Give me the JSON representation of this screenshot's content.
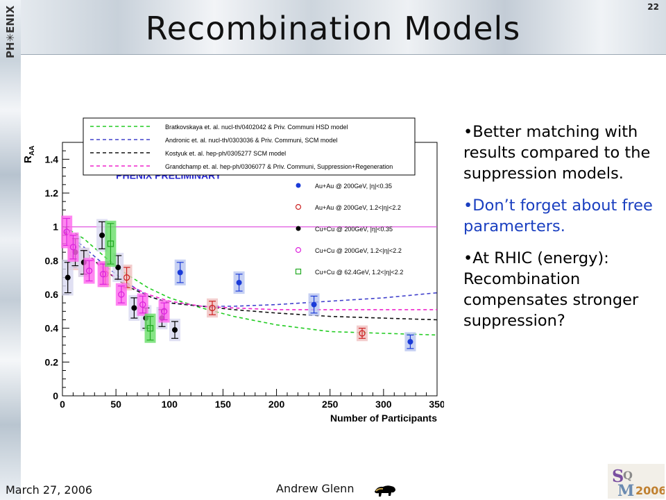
{
  "slide": {
    "title": "Recombination Models",
    "number": "22",
    "logo_text": "PH✳ENIX",
    "footer_date": "March 27, 2006",
    "footer_author": "Andrew Glenn",
    "conference_logo": "SQM2006"
  },
  "bullets": [
    {
      "text": "•Better matching with results compared to the suppression models.",
      "color": "#000000"
    },
    {
      "text": "•Don’t forget about free paramerters.",
      "color": "#1a3fc0"
    },
    {
      "text": "•At RHIC (energy): Recombination compensates stronger suppression?",
      "color": "#000000"
    }
  ],
  "chart_data": {
    "type": "scatter",
    "xlabel": "Number of Participants",
    "ylabel": "RAA",
    "xlim": [
      0,
      350
    ],
    "ylim": [
      0,
      1.5
    ],
    "xticks": [
      "0",
      "50",
      "100",
      "150",
      "200",
      "250",
      "300",
      "350"
    ],
    "yticks": [
      "0",
      "0.2",
      "0.4",
      "0.6",
      "0.8",
      "1",
      "1.2",
      "1.4"
    ],
    "annotation": "PHENIX PRELIMINARY",
    "reference_line": 1.0,
    "models": [
      {
        "name": "Bratkovskaya et. al. nucl-th/0402042 & Priv. Communi HSD model",
        "color": "#22cc22",
        "points": [
          [
            2,
            1.0
          ],
          [
            20,
            0.93
          ],
          [
            40,
            0.82
          ],
          [
            60,
            0.72
          ],
          [
            80,
            0.64
          ],
          [
            100,
            0.58
          ],
          [
            130,
            0.52
          ],
          [
            160,
            0.47
          ],
          [
            200,
            0.42
          ],
          [
            250,
            0.38
          ],
          [
            300,
            0.37
          ],
          [
            350,
            0.36
          ]
        ]
      },
      {
        "name": "Andronic et. al. nucl-th/0303036 & Priv. Communi, SCM model",
        "color": "#4040cc",
        "points": [
          [
            2,
            0.98
          ],
          [
            20,
            0.88
          ],
          [
            40,
            0.77
          ],
          [
            60,
            0.67
          ],
          [
            80,
            0.59
          ],
          [
            100,
            0.55
          ],
          [
            130,
            0.53
          ],
          [
            160,
            0.53
          ],
          [
            200,
            0.54
          ],
          [
            250,
            0.56
          ],
          [
            300,
            0.58
          ],
          [
            350,
            0.61
          ]
        ]
      },
      {
        "name": "Kostyuk et. al. hep-ph/0305277 SCM model",
        "color": "#111111",
        "points": [
          [
            2,
            0.97
          ],
          [
            20,
            0.86
          ],
          [
            40,
            0.74
          ],
          [
            60,
            0.65
          ],
          [
            80,
            0.59
          ],
          [
            100,
            0.55
          ],
          [
            130,
            0.53
          ],
          [
            160,
            0.51
          ],
          [
            200,
            0.49
          ],
          [
            250,
            0.47
          ],
          [
            300,
            0.46
          ],
          [
            350,
            0.45
          ]
        ]
      },
      {
        "name": "Grandchamp et. al. hep-ph/0306077 & Priv. Communi, Suppression+Regeneration",
        "color": "#ee22cc",
        "points": [
          [
            2,
            0.96
          ],
          [
            20,
            0.85
          ],
          [
            40,
            0.74
          ],
          [
            60,
            0.66
          ],
          [
            80,
            0.6
          ],
          [
            100,
            0.56
          ],
          [
            130,
            0.53
          ],
          [
            160,
            0.52
          ],
          [
            200,
            0.51
          ],
          [
            250,
            0.51
          ],
          [
            300,
            0.51
          ],
          [
            350,
            0.51
          ]
        ]
      }
    ],
    "series": [
      {
        "name": "Au+Au @ 200GeV, |η|<0.35",
        "color": "#1b3bd8",
        "marker": "filled-circle",
        "x": [
          110,
          165,
          235,
          325
        ],
        "y": [
          0.73,
          0.67,
          0.54,
          0.32
        ],
        "err": [
          0.06,
          0.05,
          0.05,
          0.04
        ]
      },
      {
        "name": "Au+Au @ 200GeV, 1.2<|η|<2.2",
        "color": "#cc2222",
        "marker": "open-circle",
        "x": [
          10,
          20,
          40,
          60,
          140,
          280
        ],
        "y": [
          0.84,
          0.79,
          0.72,
          0.7,
          0.52,
          0.37
        ],
        "err": [
          0.08,
          0.07,
          0.06,
          0.06,
          0.04,
          0.03
        ]
      },
      {
        "name": "Cu+Cu @ 200GeV, |η|<0.35",
        "color": "#000000",
        "marker": "filled-circle",
        "x": [
          5,
          12,
          20,
          37,
          52,
          67,
          78,
          93,
          105
        ],
        "y": [
          0.7,
          0.85,
          0.79,
          0.95,
          0.76,
          0.52,
          0.46,
          0.46,
          0.39
        ],
        "err": [
          0.09,
          0.08,
          0.07,
          0.08,
          0.07,
          0.06,
          0.06,
          0.05,
          0.05
        ]
      },
      {
        "name": "Cu+Cu @ 200GeV, 1.2<|η|<2.2",
        "color": "#dd22dd",
        "marker": "open-circle",
        "x": [
          4,
          10,
          25,
          38,
          55,
          75,
          95
        ],
        "y": [
          0.97,
          0.88,
          0.74,
          0.72,
          0.6,
          0.54,
          0.5
        ],
        "err": [
          0.08,
          0.07,
          0.06,
          0.06,
          0.05,
          0.05,
          0.05
        ]
      },
      {
        "name": "Cu+Cu @ 62.4GeV, 1.2<|η|<2.2",
        "color": "#22aa22",
        "marker": "open-square",
        "x": [
          45,
          82
        ],
        "y": [
          0.9,
          0.4
        ],
        "err": [
          0.12,
          0.07
        ]
      }
    ],
    "legend_top": "top, above plot",
    "legend_data": "right, inside plot"
  }
}
